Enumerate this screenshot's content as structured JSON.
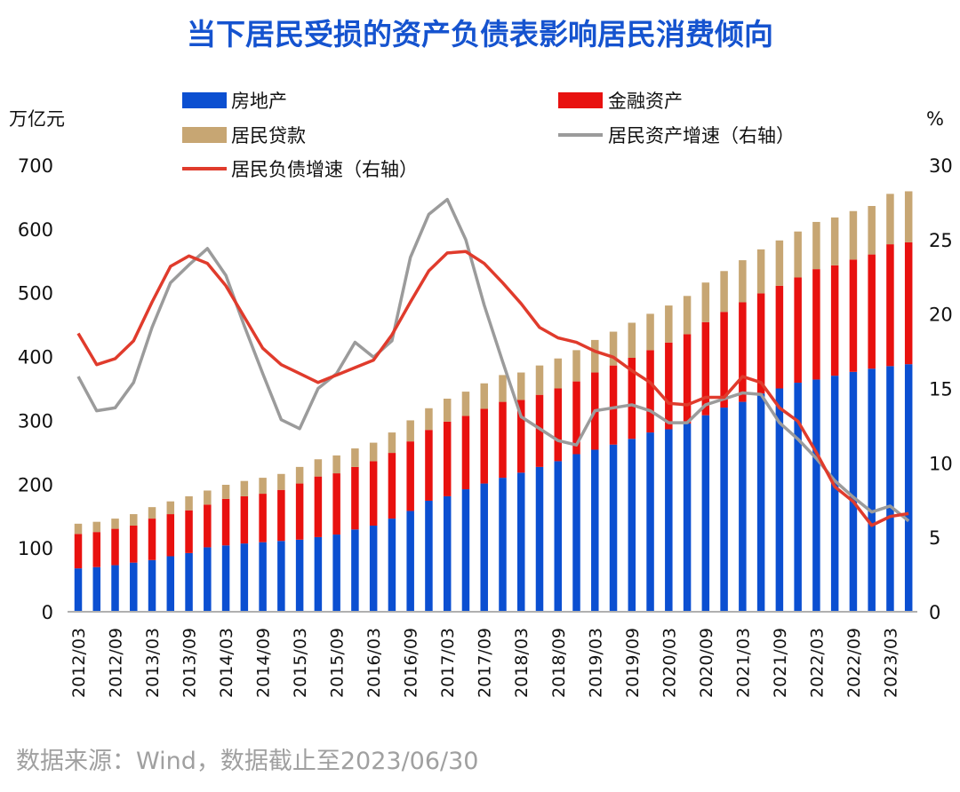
{
  "title": "当下居民受损的资产负债表影响居民消费倾向",
  "source": "数据来源：Wind，数据截止至2023/06/30",
  "colors": {
    "title": "#1553cf",
    "real_estate": "#0b4fd1",
    "financial_assets": "#e8110f",
    "household_loans": "#c7a673",
    "asset_growth": "#9b9b9b",
    "liability_growth": "#e03b2c"
  },
  "chart_data": {
    "type": "bar",
    "stacked": true,
    "title": "当下居民受损的资产负债表影响居民消费倾向",
    "ylabel_left": "万亿元",
    "ylabel_right": "%",
    "ylim_left": [
      0,
      700
    ],
    "yticks_left": [
      "0",
      "100",
      "200",
      "300",
      "400",
      "500",
      "600",
      "700"
    ],
    "ylim_right": [
      0,
      30
    ],
    "yticks_right": [
      "0",
      "5",
      "10",
      "15",
      "20",
      "25",
      "30"
    ],
    "grid": false,
    "legend_position": "top",
    "xtick_labels": [
      "2012/03",
      "2012/09",
      "2013/03",
      "2013/09",
      "2014/03",
      "2014/09",
      "2015/03",
      "2015/09",
      "2016/03",
      "2016/09",
      "2017/03",
      "2017/09",
      "2018/03",
      "2018/09",
      "2019/03",
      "2019/09",
      "2020/03",
      "2020/09",
      "2021/03",
      "2021/09",
      "2022/03",
      "2022/09",
      "2023/03"
    ],
    "categories": [
      "2012Q1",
      "2012Q2",
      "2012Q3",
      "2012Q4",
      "2013Q1",
      "2013Q2",
      "2013Q3",
      "2013Q4",
      "2014Q1",
      "2014Q2",
      "2014Q3",
      "2014Q4",
      "2015Q1",
      "2015Q2",
      "2015Q3",
      "2015Q4",
      "2016Q1",
      "2016Q2",
      "2016Q3",
      "2016Q4",
      "2017Q1",
      "2017Q2",
      "2017Q3",
      "2017Q4",
      "2018Q1",
      "2018Q2",
      "2018Q3",
      "2018Q4",
      "2019Q1",
      "2019Q2",
      "2019Q3",
      "2019Q4",
      "2020Q1",
      "2020Q2",
      "2020Q3",
      "2020Q4",
      "2021Q1",
      "2021Q2",
      "2021Q3",
      "2021Q4",
      "2022Q1",
      "2022Q2",
      "2022Q3",
      "2022Q4",
      "2023Q1",
      "2023Q2"
    ],
    "bar_series": [
      {
        "name": "房地产",
        "color_key": "real_estate",
        "values": [
          68,
          70,
          73,
          77,
          81,
          87,
          92,
          101,
          104,
          107,
          109,
          111,
          113,
          117,
          121,
          129,
          135,
          146,
          158,
          174,
          181,
          192,
          201,
          210,
          218,
          227,
          236,
          247,
          254,
          262,
          271,
          281,
          286,
          295,
          308,
          320,
          329,
          342,
          350,
          359,
          364,
          370,
          376,
          381,
          385,
          388
        ]
      },
      {
        "name": "金融资产",
        "color_key": "financial_assets",
        "values": [
          54,
          55,
          57,
          58,
          65,
          66,
          67,
          67,
          73,
          74,
          76,
          80,
          88,
          95,
          96,
          98,
          101,
          103,
          109,
          111,
          117,
          115,
          117,
          119,
          114,
          113,
          114,
          114,
          121,
          124,
          127,
          129,
          136,
          140,
          146,
          150,
          156,
          157,
          161,
          165,
          173,
          173,
          176,
          179,
          191,
          191
        ]
      },
      {
        "name": "居民贷款",
        "color_key": "household_loans",
        "values": [
          16,
          16,
          16,
          18,
          18,
          20,
          22,
          22,
          22,
          24,
          25,
          25,
          26,
          27,
          28,
          29,
          29,
          32,
          33,
          34,
          36,
          38,
          40,
          42,
          43,
          46,
          47,
          49,
          51,
          53,
          55,
          57,
          58,
          60,
          62,
          64,
          66,
          69,
          71,
          72,
          74,
          75,
          76,
          76,
          79,
          80
        ]
      }
    ],
    "line_series": [
      {
        "name": "居民资产增速（右轴）",
        "color_key": "asset_growth",
        "axis": "right",
        "values": [
          15.8,
          13.5,
          13.7,
          15.4,
          19.1,
          22.1,
          23.3,
          24.4,
          22.6,
          19.2,
          16.0,
          12.9,
          12.3,
          15.0,
          16.0,
          18.1,
          17.1,
          18.2,
          23.8,
          26.7,
          27.7,
          25.0,
          20.6,
          16.8,
          13.1,
          12.3,
          11.5,
          11.2,
          13.5,
          13.7,
          13.9,
          13.5,
          12.7,
          12.7,
          13.9,
          14.3,
          14.7,
          14.6,
          12.7,
          11.6,
          10.3,
          8.8,
          7.7,
          6.7,
          7.1,
          6.1
        ]
      },
      {
        "name": "居民负债增速（右轴）",
        "color_key": "liability_growth",
        "axis": "right",
        "values": [
          18.7,
          16.6,
          17.0,
          18.2,
          20.8,
          23.2,
          23.9,
          23.4,
          21.9,
          19.8,
          17.7,
          16.6,
          16.0,
          15.4,
          15.9,
          16.4,
          16.9,
          18.6,
          20.8,
          22.9,
          24.1,
          24.2,
          23.4,
          22.1,
          20.7,
          19.1,
          18.4,
          18.1,
          17.5,
          17.1,
          16.2,
          15.4,
          14.0,
          13.9,
          14.4,
          14.4,
          15.8,
          15.4,
          13.7,
          12.8,
          10.7,
          8.4,
          7.4,
          5.8,
          6.4,
          6.6
        ]
      }
    ],
    "legend": [
      "房地产",
      "金融资产",
      "居民贷款",
      "居民资产增速（右轴）",
      "居民负债增速（右轴）"
    ]
  }
}
